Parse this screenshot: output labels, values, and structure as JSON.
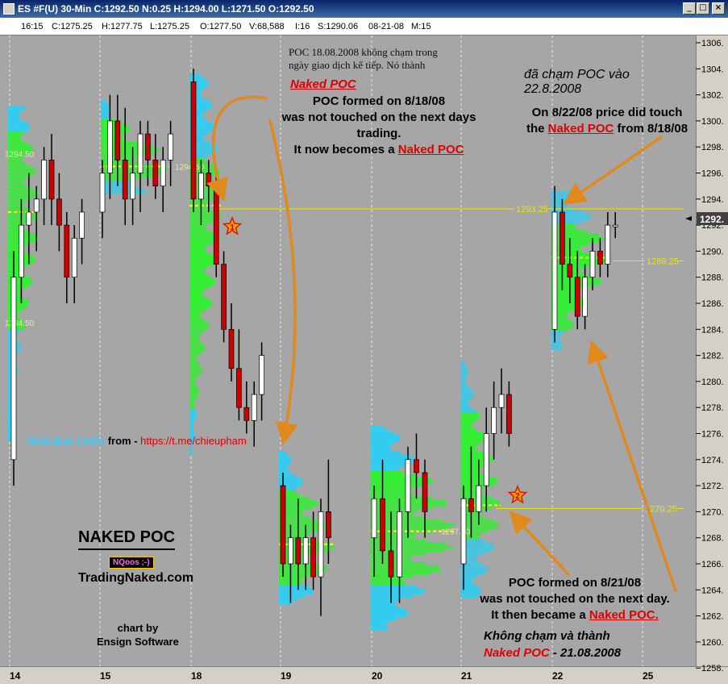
{
  "window": {
    "title": "ES #F(U) 30-Min C:1292.50 N:0.25 H:1294.00 L:1271.50 O:1292.50",
    "buttons": [
      "_",
      "□",
      "×"
    ]
  },
  "info_bar": {
    "items": [
      "16:15",
      "C:1275.25",
      "H:1277.75",
      "L:1275.25",
      "O:1277.50",
      "V:68,588",
      "I:16",
      "S:1290.06",
      "08-21-08",
      "M:15"
    ]
  },
  "annotations": {
    "viet_top_1": "POC 18.08.2008 không chạm trong",
    "viet_top_2": "ngày giao dịch kế tiếp. Nó thành",
    "viet_top_red": "Naked POC",
    "poc1_line1": "POC formed on 8/18/08",
    "poc1_line2": "was not touched on the next days",
    "poc1_line3": "trading.",
    "poc1_line4_pre": "It now becomes a",
    "poc1_line4_red": "Naked POC",
    "viet_right_1": "đã chạm POC vào",
    "viet_right_2": "22.8.2008",
    "touch_line1": "On 8/22/08 price did touch",
    "touch_pre": "the",
    "touch_red": "Naked POC",
    "touch_post": "from 8/18/08",
    "poc2_line1": "POC formed on 8/21/08",
    "poc2_line2": "was not touched on the next day.",
    "poc2_line3_pre": "It then became a",
    "poc2_line3_red": "Naked POC.",
    "viet_bottom_1": "Không chạm và thành",
    "viet_bottom_red": "Naked POC",
    "viet_bottom_post": " - 21.08.2008",
    "author_name": "Hoài Bảo Chiêu",
    "author_from": " from - ",
    "author_link": "https://t.me/chieupham",
    "brand_title": "NAKED POC",
    "brand_badge": "NQoos ;-)",
    "brand_site": "TradingNaked.com",
    "credit_line1": "chart by",
    "credit_line2": "Ensign Software",
    "marker_1": "1",
    "marker_2": "2"
  },
  "chart_data": {
    "type": "candlestick",
    "title": "ES #F(U) 30-Min",
    "symbol": "ES #F(U)",
    "interval": "30-Min",
    "last_price": "1292.",
    "y_axis": {
      "ylim": [
        1257.5,
        1307.5
      ],
      "ticks": [
        "1306.",
        "1304.",
        "1302.",
        "1300.",
        "1298.",
        "1296.",
        "1294.",
        "1292.",
        "1290.",
        "1288.",
        "1286.",
        "1284.",
        "1282.",
        "1280.",
        "1278.",
        "1276.",
        "1274.",
        "1272.",
        "1270.",
        "1268.",
        "1266.",
        "1264.",
        "1262.",
        "1260.",
        "1258."
      ]
    },
    "x_axis": {
      "ticks": [
        "14",
        "15",
        "18",
        "19",
        "20",
        "21",
        "22",
        "25"
      ]
    },
    "horizontal_levels": [
      {
        "price": 1293.25,
        "label": "1293.25",
        "color": "#e6e600"
      },
      {
        "price": 1270.25,
        "label": "1270.25",
        "color": "#e6e600"
      },
      {
        "price": 1289.25,
        "label": "1289.25",
        "color": "#e6e600"
      }
    ],
    "profile_labels": [
      "1294.50",
      "1294.50",
      "1284.50",
      "1297.50"
    ],
    "colors": {
      "up": "#ffffff",
      "down": "#cc0000",
      "va": "#33ee33",
      "profile_outer": "#33ccee",
      "poc": "#ffff00"
    },
    "candles": [
      [
        1274,
        1290,
        1272,
        1288
      ],
      [
        1288,
        1294,
        1286,
        1292
      ],
      [
        1292,
        1296,
        1289,
        1293
      ],
      [
        1293,
        1295,
        1290,
        1294
      ],
      [
        1294,
        1298,
        1292,
        1297
      ],
      [
        1297,
        1299,
        1292,
        1294
      ],
      [
        1294,
        1296,
        1290,
        1292
      ],
      [
        1292,
        1293,
        1286,
        1288
      ],
      [
        1288,
        1292,
        1286,
        1291
      ],
      [
        1291,
        1294,
        1289,
        1293
      ],
      [
        1293,
        1297,
        1291,
        1296
      ],
      [
        1296,
        1302,
        1294,
        1300
      ],
      [
        1300,
        1302,
        1295,
        1297
      ],
      [
        1297,
        1301,
        1292,
        1294
      ],
      [
        1294,
        1298,
        1292,
        1296
      ],
      [
        1296,
        1300,
        1293,
        1299
      ],
      [
        1299,
        1300,
        1295,
        1297
      ],
      [
        1297,
        1299,
        1294,
        1295
      ],
      [
        1295,
        1298,
        1293,
        1297
      ],
      [
        1297,
        1300,
        1295,
        1299
      ],
      [
        1303,
        1304,
        1293,
        1294
      ],
      [
        1294,
        1297,
        1292,
        1296
      ],
      [
        1296,
        1297,
        1293,
        1295
      ],
      [
        1295,
        1296,
        1288,
        1289
      ],
      [
        1289,
        1290,
        1283,
        1284
      ],
      [
        1284,
        1286,
        1280,
        1281
      ],
      [
        1281,
        1284,
        1277,
        1278
      ],
      [
        1278,
        1280,
        1276,
        1277
      ],
      [
        1277,
        1280,
        1275,
        1279
      ],
      [
        1279,
        1283,
        1277,
        1282
      ],
      [
        1272,
        1273,
        1265,
        1266
      ],
      [
        1266,
        1269,
        1263,
        1268
      ],
      [
        1268,
        1271,
        1264,
        1266
      ],
      [
        1266,
        1269,
        1264,
        1268
      ],
      [
        1268,
        1270,
        1264,
        1265
      ],
      [
        1265,
        1271,
        1262,
        1270
      ],
      [
        1270,
        1274,
        1266,
        1268
      ],
      [
        1268,
        1272,
        1265,
        1271
      ],
      [
        1271,
        1274,
        1266,
        1267
      ],
      [
        1267,
        1270,
        1263,
        1265
      ],
      [
        1265,
        1271,
        1263,
        1270
      ],
      [
        1270,
        1275,
        1268,
        1274
      ],
      [
        1274,
        1276,
        1271,
        1273
      ],
      [
        1273,
        1274,
        1268,
        1270
      ],
      [
        1266,
        1272,
        1264,
        1271
      ],
      [
        1271,
        1275,
        1268,
        1270
      ],
      [
        1270,
        1274,
        1269,
        1272
      ],
      [
        1272,
        1278,
        1270,
        1276
      ],
      [
        1276,
        1280,
        1274,
        1278
      ],
      [
        1278,
        1281,
        1276,
        1279
      ],
      [
        1279,
        1280,
        1275,
        1276
      ],
      [
        1284,
        1295,
        1283,
        1293
      ],
      [
        1293,
        1294,
        1287,
        1289
      ],
      [
        1289,
        1291,
        1286,
        1288
      ],
      [
        1288,
        1290,
        1284,
        1285
      ],
      [
        1285,
        1289,
        1284,
        1288
      ],
      [
        1288,
        1291,
        1287,
        1290
      ],
      [
        1290,
        1291,
        1288,
        1289
      ],
      [
        1289,
        1293,
        1288,
        1292
      ],
      [
        1292,
        1293,
        1291,
        1292
      ]
    ]
  }
}
